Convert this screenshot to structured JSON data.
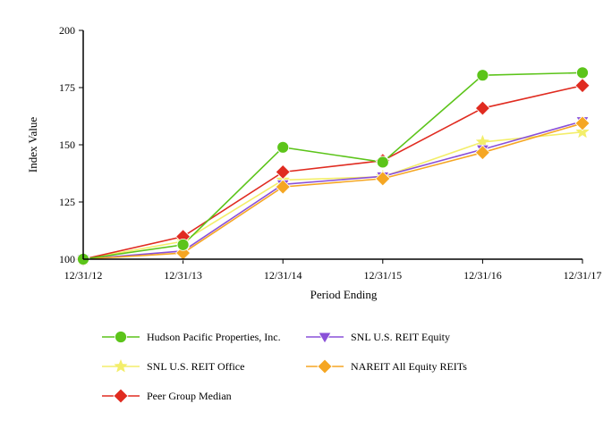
{
  "chart_data": {
    "type": "line",
    "title": "",
    "xlabel": "Period Ending",
    "ylabel": "Index Value",
    "categories": [
      "12/31/12",
      "12/31/13",
      "12/31/14",
      "12/31/15",
      "12/31/16",
      "12/31/17"
    ],
    "ylim": [
      100,
      200
    ],
    "yticks": [
      100,
      125,
      150,
      175,
      200
    ],
    "grid": false,
    "legend_position": "bottom",
    "series": [
      {
        "name": "Hudson Pacific Properties, Inc.",
        "color": "#5cc41a",
        "marker": "circle",
        "values": [
          100,
          106.3,
          148.9,
          142.4,
          180.4,
          181.5
        ]
      },
      {
        "name": "SNL U.S. REIT Equity",
        "color": "#8a50d8",
        "marker": "triangle-down",
        "values": [
          100,
          103.6,
          132.7,
          136.2,
          148.0,
          160.3
        ]
      },
      {
        "name": "SNL U.S. REIT Office",
        "color": "#f3ee6a",
        "marker": "star",
        "values": [
          100,
          107.8,
          134.6,
          136.0,
          151.2,
          155.6
        ]
      },
      {
        "name": "NAREIT All Equity REITs",
        "color": "#f5a623",
        "marker": "diamond",
        "values": [
          100,
          102.7,
          131.6,
          135.2,
          146.6,
          159.4
        ]
      },
      {
        "name": "Peer Group Median",
        "color": "#e02b20",
        "marker": "diamond",
        "values": [
          100,
          109.9,
          138.1,
          143.1,
          166.0,
          175.9
        ]
      }
    ]
  }
}
